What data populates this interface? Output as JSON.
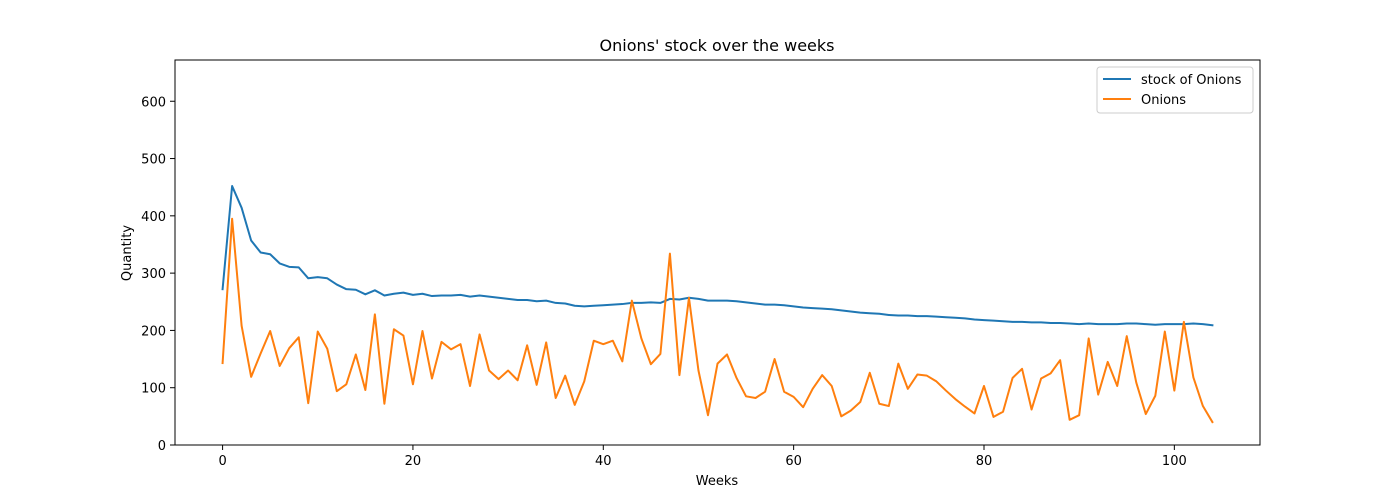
{
  "chart_data": {
    "type": "line",
    "title": "Onions' stock over the weeks",
    "xlabel": "Weeks",
    "ylabel": "Quantity",
    "xlim": [
      -5,
      109
    ],
    "ylim": [
      0,
      672
    ],
    "xticks": [
      0,
      20,
      40,
      60,
      80,
      100
    ],
    "yticks": [
      0,
      100,
      200,
      300,
      400,
      500,
      600
    ],
    "grid": false,
    "legend": "top-right",
    "series": [
      {
        "name": "stock of Onions",
        "color": "#1f77b4",
        "x": [
          0,
          1,
          2,
          3,
          4,
          5,
          6,
          7,
          8,
          9,
          10,
          11,
          12,
          13,
          14,
          15,
          16,
          17,
          18,
          19,
          20,
          21,
          22,
          23,
          24,
          25,
          26,
          27,
          28,
          29,
          30,
          31,
          32,
          33,
          34,
          35,
          36,
          37,
          38,
          39,
          40,
          41,
          42,
          43,
          44,
          45,
          46,
          47,
          48,
          49,
          50,
          51,
          52,
          53,
          54,
          55,
          56,
          57,
          58,
          59,
          60,
          61,
          62,
          63,
          64,
          65,
          66,
          67,
          68,
          69,
          70,
          71,
          72,
          73,
          74,
          75,
          76,
          77,
          78,
          79,
          80,
          81,
          82,
          83,
          84,
          85,
          86,
          87,
          88,
          89,
          90,
          91,
          92,
          93,
          94,
          95,
          96,
          97,
          98,
          99,
          100,
          101,
          102,
          103,
          104
        ],
        "values": [
          272,
          452,
          414,
          357,
          336,
          333,
          317,
          311,
          310,
          291,
          293,
          291,
          280,
          272,
          271,
          263,
          270,
          261,
          264,
          266,
          262,
          264,
          260,
          261,
          261,
          262,
          259,
          261,
          259,
          257,
          255,
          253,
          253,
          251,
          252,
          248,
          247,
          243,
          242,
          243,
          244,
          245,
          246,
          248,
          248,
          249,
          248,
          255,
          254,
          257,
          255,
          252,
          252,
          252,
          251,
          249,
          247,
          245,
          245,
          244,
          242,
          240,
          239,
          238,
          237,
          235,
          233,
          231,
          230,
          229,
          227,
          226,
          226,
          225,
          225,
          224,
          223,
          222,
          221,
          219,
          218,
          217,
          216,
          215,
          215,
          214,
          214,
          213,
          213,
          212,
          211,
          212,
          211,
          211,
          211,
          212,
          212,
          211,
          210,
          211,
          211,
          211,
          212,
          211,
          209
        ]
      },
      {
        "name": "Onions",
        "color": "#ff7f0e",
        "x": [
          0,
          1,
          2,
          3,
          4,
          5,
          6,
          7,
          8,
          9,
          10,
          11,
          12,
          13,
          14,
          15,
          16,
          17,
          18,
          19,
          20,
          21,
          22,
          23,
          24,
          25,
          26,
          27,
          28,
          29,
          30,
          31,
          32,
          33,
          34,
          35,
          36,
          37,
          38,
          39,
          40,
          41,
          42,
          43,
          44,
          45,
          46,
          47,
          48,
          49,
          50,
          51,
          52,
          53,
          54,
          55,
          56,
          57,
          58,
          59,
          60,
          61,
          62,
          63,
          64,
          65,
          66,
          67,
          68,
          69,
          70,
          71,
          72,
          73,
          74,
          75,
          76,
          77,
          78,
          79,
          80,
          81,
          82,
          83,
          84,
          85,
          86,
          87,
          88,
          89,
          90,
          91,
          92,
          93,
          94,
          95,
          96,
          97,
          98,
          99,
          100,
          101,
          102,
          103,
          104
        ],
        "values": [
          143,
          395,
          208,
          119,
          160,
          199,
          138,
          169,
          188,
          73,
          198,
          168,
          94,
          106,
          158,
          96,
          228,
          72,
          202,
          191,
          106,
          199,
          116,
          180,
          167,
          176,
          103,
          193,
          130,
          115,
          130,
          113,
          174,
          105,
          179,
          82,
          121,
          70,
          111,
          182,
          176,
          182,
          146,
          252,
          186,
          141,
          159,
          334,
          122,
          257,
          130,
          52,
          142,
          158,
          117,
          85,
          82,
          93,
          150,
          93,
          84,
          66,
          98,
          122,
          103,
          50,
          60,
          75,
          126,
          72,
          68,
          142,
          98,
          123,
          121,
          111,
          95,
          80,
          67,
          55,
          103,
          49,
          58,
          117,
          133,
          62,
          116,
          125,
          148,
          44,
          52,
          186,
          88,
          145,
          103,
          190,
          109,
          54,
          86,
          198,
          95,
          215,
          118,
          68,
          40
        ]
      }
    ]
  }
}
